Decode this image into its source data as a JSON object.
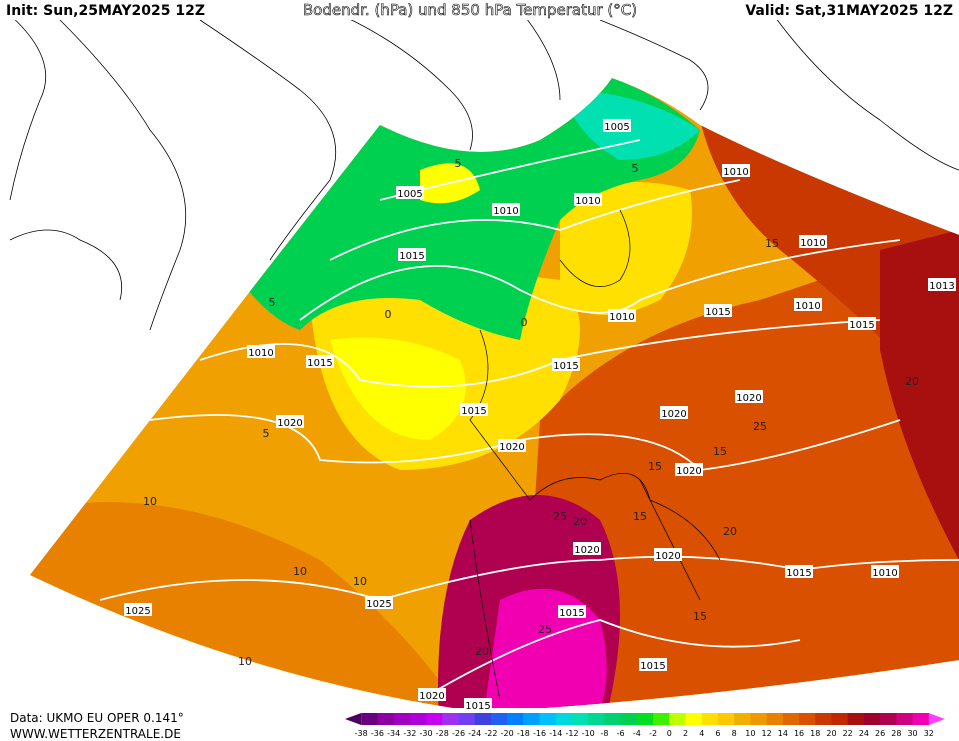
{
  "header": {
    "init": "Init: Sun,25MAY2025 12Z",
    "title": "Bodendr. (hPa) und 850 hPa Temperatur (°C)",
    "valid": "Valid: Sat,31MAY2025 12Z"
  },
  "footer": {
    "source": "Data: UKMO EU OPER 0.141°",
    "website": "WWW.WETTERZENTRALE.DE"
  },
  "isobar_labels": [
    "1005",
    "1010",
    "1005",
    "1010",
    "1010",
    "1010",
    "1015",
    "1013",
    "1010",
    "1015",
    "1010",
    "1015",
    "1010",
    "1015",
    "1015",
    "1015",
    "1020",
    "1020",
    "1020",
    "1020",
    "1020",
    "1020",
    "1020",
    "1015",
    "1010",
    "1025",
    "1025",
    "1015",
    "1015",
    "1020",
    "1015"
  ],
  "isotherm_labels": [
    "5",
    "5",
    "0",
    "0",
    "5",
    "5",
    "15",
    "15",
    "10",
    "10",
    "10",
    "15",
    "20",
    "25",
    "20",
    "25",
    "20",
    "15",
    "15",
    "20",
    "25",
    "10"
  ],
  "colorbar": {
    "labels": [
      -38,
      -36,
      -34,
      -32,
      -30,
      -28,
      -26,
      -24,
      -22,
      -20,
      -18,
      -16,
      -14,
      -12,
      -10,
      -8,
      -6,
      -4,
      -2,
      0,
      2,
      4,
      6,
      8,
      10,
      12,
      14,
      16,
      18,
      20,
      22,
      24,
      26,
      28,
      30,
      32
    ],
    "colors": [
      "#4b0060",
      "#6a0080",
      "#8a00a0",
      "#a000c0",
      "#b000d8",
      "#c800f0",
      "#a030f0",
      "#7040f0",
      "#4040e0",
      "#2060f0",
      "#0080ff",
      "#00a0ff",
      "#00c0ff",
      "#00d8e0",
      "#00e0b0",
      "#00d890",
      "#00d070",
      "#00d050",
      "#00e020",
      "#40f000",
      "#c0ff00",
      "#ffff00",
      "#ffe000",
      "#ffc800",
      "#f0b000",
      "#f09800",
      "#e88000",
      "#e06800",
      "#d85000",
      "#c83800",
      "#c02800",
      "#a81010",
      "#a00030",
      "#b00050",
      "#d00080",
      "#f000b0",
      "#ff40ff"
    ]
  }
}
